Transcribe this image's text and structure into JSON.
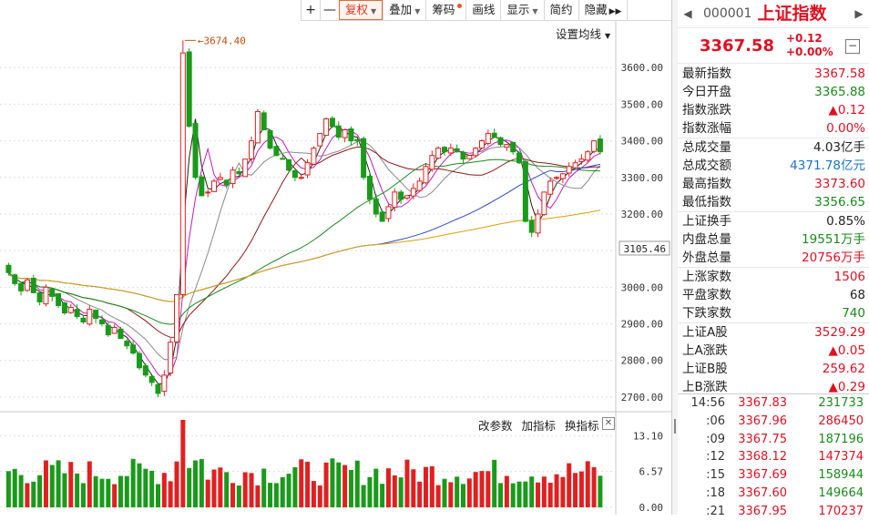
{
  "toolbar": {
    "items": [
      {
        "label": "+",
        "active": false
      },
      {
        "label": "—",
        "active": false
      },
      {
        "label": "复权",
        "active": true,
        "dropdown": true
      },
      {
        "label": "叠加",
        "dropdown": true
      },
      {
        "label": "筹码",
        "badge": true
      },
      {
        "label": "画线"
      },
      {
        "label": "显示",
        "dropdown": true
      },
      {
        "label": "简约"
      },
      {
        "label": "隐藏",
        "arrows": "▶▶"
      }
    ]
  },
  "main_chart": {
    "settings_label": "设置均线",
    "annotation": "3674.40"
  },
  "indicator_toolbar": {
    "labels": [
      "改参数",
      "加指标",
      "换指标"
    ]
  },
  "panel": {
    "code": "000001",
    "name": "上证指数",
    "price": "3367.58",
    "change": "+0.12",
    "change_pct": "+0.00%",
    "stats": [
      {
        "label": "最新指数",
        "value": "3367.58",
        "color": "red"
      },
      {
        "label": "今日开盘",
        "value": "3365.88",
        "color": "green"
      },
      {
        "label": "指数涨跌",
        "value": "▲0.12",
        "color": "red"
      },
      {
        "label": "指数涨幅",
        "value": "0.00%",
        "color": "red"
      },
      {
        "label": "总成交量",
        "value": "4.03亿手",
        "color": "black"
      },
      {
        "label": "总成交额",
        "value": "4371.78亿元",
        "color": "blue"
      },
      {
        "label": "最高指数",
        "value": "3373.60",
        "color": "red"
      },
      {
        "label": "最低指数",
        "value": "3356.65",
        "color": "green"
      },
      {
        "label": "上证换手",
        "value": "0.85%",
        "color": "black"
      },
      {
        "label": "内盘总量",
        "value": "19551万手",
        "color": "green"
      },
      {
        "label": "外盘总量",
        "value": "20756万手",
        "color": "red"
      },
      {
        "label": "上涨家数",
        "value": "1506",
        "color": "red"
      },
      {
        "label": "平盘家数",
        "value": "68",
        "color": "black"
      },
      {
        "label": "下跌家数",
        "value": "740",
        "color": "green"
      },
      {
        "label": "上证A股",
        "value": "3529.29",
        "color": "red"
      },
      {
        "label": "上A涨跌",
        "value": "▲0.05",
        "color": "red"
      },
      {
        "label": "上证B股",
        "value": "259.62",
        "color": "red"
      },
      {
        "label": "上B涨跌",
        "value": "▲0.29",
        "color": "red"
      }
    ],
    "ticks": [
      {
        "time": "14:56",
        "price": "3367.83",
        "volume": "231733",
        "vcolor": "green"
      },
      {
        "time": ":06",
        "price": "3367.96",
        "volume": "286450",
        "vcolor": "red"
      },
      {
        "time": ":09",
        "price": "3367.75",
        "volume": "187196",
        "vcolor": "green"
      },
      {
        "time": ":12",
        "price": "3368.12",
        "volume": "147374",
        "vcolor": "red"
      },
      {
        "time": ":15",
        "price": "3367.69",
        "volume": "158944",
        "vcolor": "green"
      },
      {
        "time": ":18",
        "price": "3367.60",
        "volume": "149664",
        "vcolor": "green"
      },
      {
        "time": ":21",
        "price": "3367.95",
        "volume": "170237",
        "vcolor": "red"
      }
    ]
  },
  "chart_data": {
    "type": "candlestick",
    "price_axis": {
      "ticks": [
        "3600.00",
        "3500.00",
        "3400.00",
        "3300.00",
        "3200.00",
        "3100.00",
        "3000.00",
        "2900.00",
        "2800.00",
        "2700.00"
      ],
      "current_marker": "3105.46",
      "range": [
        2660,
        3730
      ]
    },
    "volume_axis": {
      "ticks": [
        "13.10",
        "6.57",
        "0.00"
      ],
      "range": [
        0,
        14.2
      ]
    },
    "high_annotation": 3674.4,
    "closes": [
      3040,
      3010,
      2990,
      3020,
      2985,
      2960,
      3000,
      2975,
      2950,
      2930,
      2945,
      2920,
      2905,
      2940,
      2915,
      2900,
      2870,
      2890,
      2860,
      2840,
      2820,
      2780,
      2760,
      2740,
      2710,
      2760,
      2850,
      2980,
      3640,
      3440,
      3300,
      3250,
      3260,
      3290,
      3300,
      3280,
      3320,
      3310,
      3350,
      3400,
      3480,
      3430,
      3380,
      3360,
      3350,
      3320,
      3300,
      3300,
      3340,
      3380,
      3420,
      3460,
      3440,
      3410,
      3430,
      3400,
      3400,
      3300,
      3240,
      3200,
      3180,
      3220,
      3260,
      3240,
      3250,
      3270,
      3290,
      3330,
      3360,
      3380,
      3370,
      3380,
      3370,
      3350,
      3360,
      3380,
      3400,
      3420,
      3410,
      3390,
      3390,
      3370,
      3340,
      3180,
      3150,
      3200,
      3260,
      3290,
      3300,
      3310,
      3330,
      3340,
      3350,
      3370,
      3400,
      3370
    ],
    "ma_series": [
      {
        "color": "#222222"
      },
      {
        "color": "#c01cc0"
      },
      {
        "color": "#8a8a8a"
      },
      {
        "color": "#8b1a1a"
      },
      {
        "color": "#1a8a1a"
      },
      {
        "color": "#2a4bc8"
      },
      {
        "color": "#e0a000"
      }
    ]
  }
}
